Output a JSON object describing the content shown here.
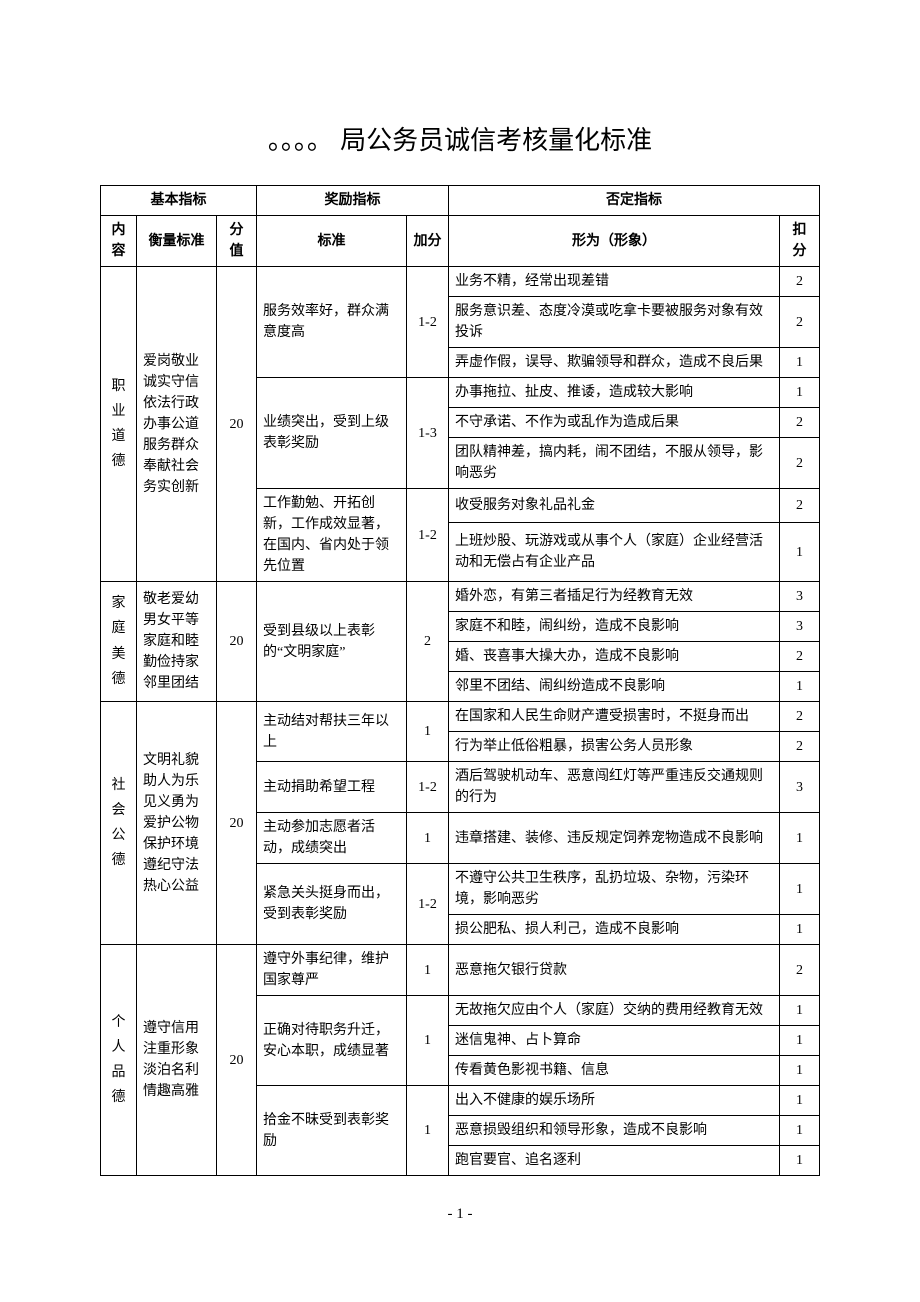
{
  "title": "。。。。 局公务员诚信考核量化标准",
  "pageNumber": "- 1 -",
  "headers": {
    "basic": "基本指标",
    "reward": "奖励指标",
    "negative": "否定指标",
    "content": "内容",
    "measure": "衡量标准",
    "score": "分值",
    "standard": "标准",
    "bonus": "加分",
    "behavior": "形为（形象）",
    "deduct": "扣分"
  },
  "s1": {
    "name": "职业道德",
    "measure": "爱岗敬业\n诚实守信\n依法行政\n办事公道\n服务群众\n奉献社会\n务实创新",
    "score": "20",
    "g1": {
      "std": "服务效率好，群众满意度高",
      "bonus": "1-2",
      "b1": "业务不精，经常出现差错",
      "d1": "2",
      "b2": "服务意识差、态度冷漠或吃拿卡要被服务对象有效投诉",
      "d2": "2",
      "b3": "弄虚作假，误导、欺骗领导和群众，造成不良后果",
      "d3": "1"
    },
    "g2": {
      "std": "业绩突出，受到上级表彰奖励",
      "bonus": "1-3",
      "b1": "办事拖拉、扯皮、推诿，造成较大影响",
      "d1": "1",
      "b2": "不守承诺、不作为或乱作为造成后果",
      "d2": "2",
      "b3": "团队精神差，搞内耗，闹不团结，不服从领导，影响恶劣",
      "d3": "2"
    },
    "g3": {
      "std": "工作勤勉、开拓创新，工作成效显著，在国内、省内处于领先位置",
      "bonus": "1-2",
      "b1": "收受服务对象礼品礼金",
      "d1": "2",
      "b2": "上班炒股、玩游戏或从事个人（家庭）企业经营活动和无偿占有企业产品",
      "d2": "1"
    }
  },
  "s2": {
    "name": "家庭美德",
    "measure": "敬老爱幼\n男女平等\n家庭和睦\n勤俭持家\n邻里团结",
    "score": "20",
    "g1": {
      "std": "受到县级以上表彰的“文明家庭”",
      "bonus": "2",
      "b1": "婚外恋，有第三者插足行为经教育无效",
      "d1": "3",
      "b2": "家庭不和睦，闹纠纷，造成不良影响",
      "d2": "3",
      "b3": "婚、丧喜事大操大办，造成不良影响",
      "d3": "2",
      "b4": "邻里不团结、闹纠纷造成不良影响",
      "d4": "1"
    }
  },
  "s3": {
    "name": "社会公德",
    "measure": "文明礼貌\n助人为乐\n见义勇为\n爱护公物\n保护环境\n遵纪守法\n热心公益",
    "score": "20",
    "g1": {
      "std": "主动结对帮扶三年以上",
      "bonus": "1",
      "b1": "在国家和人民生命财产遭受损害时，不挺身而出",
      "d1": "2",
      "b2": "行为举止低俗粗暴，损害公务人员形象",
      "d2": "2"
    },
    "g2": {
      "std": "主动捐助希望工程",
      "bonus": "1-2",
      "b1": "酒后驾驶机动车、恶意闯红灯等严重违反交通规则的行为",
      "d1": "3"
    },
    "g3": {
      "std": "主动参加志愿者活动，成绩突出",
      "bonus": "1",
      "b1": "违章搭建、装修、违反规定饲养宠物造成不良影响",
      "d1": "1"
    },
    "g4": {
      "std": "紧急关头挺身而出，受到表彰奖励",
      "bonus": "1-2",
      "b1": "不遵守公共卫生秩序，乱扔垃圾、杂物，污染环境，影响恶劣",
      "d1": "1",
      "b2": "损公肥私、损人利己，造成不良影响",
      "d2": "1"
    }
  },
  "s4": {
    "name": "个人品德",
    "measure": "遵守信用\n注重形象\n淡泊名利\n情趣高雅",
    "score": "20",
    "g1": {
      "std": "遵守外事纪律，维护国家尊严",
      "bonus": "1",
      "b1": "恶意拖欠银行贷款",
      "d1": "2"
    },
    "g2": {
      "std": "正确对待职务升迁，安心本职，成绩显著",
      "bonus": "1",
      "b1": "无故拖欠应由个人（家庭）交纳的费用经教育无效",
      "d1": "1",
      "b2": "迷信鬼神、占卜算命",
      "d2": "1",
      "b3": "传看黄色影视书籍、信息",
      "d3": "1"
    },
    "g3": {
      "std": "拾金不昧受到表彰奖励",
      "bonus": "1",
      "b1": "出入不健康的娱乐场所",
      "d1": "1",
      "b2": "恶意损毁组织和领导形象，造成不良影响",
      "d2": "1",
      "b3": "跑官要官、追名逐利",
      "d3": "1"
    }
  }
}
